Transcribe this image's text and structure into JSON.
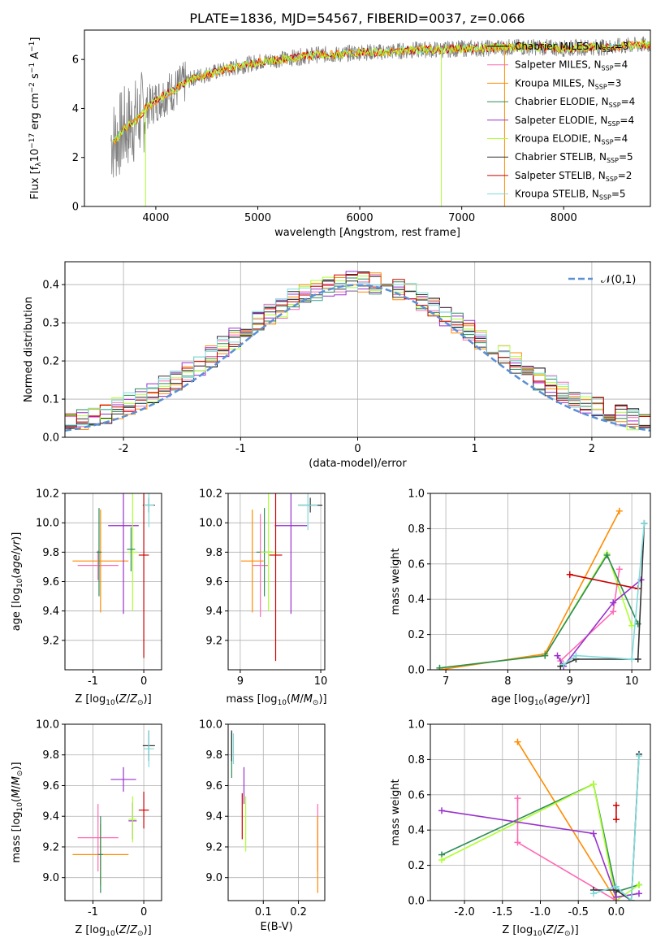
{
  "title": "PLATE=1836, MJD=54567, FIBERID=0037, z=0.066",
  "colors": [
    "#000000",
    "#ff69b4",
    "#ff8c00",
    "#2e8b57",
    "#9932cc",
    "#adff2f",
    "#333333",
    "#cc0000",
    "#7fdbdb"
  ],
  "series_names": [
    "Chabrier MILES, N$_{SSP}$=3",
    "Salpeter MILES, N$_{SSP}$=4",
    "Kroupa MILES, N$_{SSP}$=3",
    "Chabrier ELODIE, N$_{SSP}$=4",
    "Salpeter ELODIE, N$_{SSP}$=4",
    "Kroupa ELODIE, N$_{SSP}$=4",
    "Chabrier STELIB, N$_{SSP}$=5",
    "Salpeter STELIB, N$_{SSP}$=2",
    "Kroupa STELIB, N$_{SSP}$=5"
  ],
  "chart_data": [
    {
      "type": "line",
      "panel": "spectrum",
      "xlabel": "wavelength [Angstrom, rest frame]",
      "ylabel_parts": [
        "Flux [f",
        "λ",
        "10",
        "−17",
        " erg cm",
        "−2",
        " s",
        "−1",
        " A",
        "−1",
        "]"
      ],
      "xlim": [
        3300,
        8850
      ],
      "ylim": [
        0,
        7.2
      ],
      "xticks": [
        4000,
        5000,
        6000,
        7000,
        8000
      ],
      "yticks": [
        0,
        2,
        4,
        6
      ],
      "data_envelope": {
        "x": [
          3600,
          3700,
          3800,
          3900,
          4000,
          4100,
          4200,
          4300,
          4400,
          4600,
          4800,
          5000,
          5200,
          5400,
          5600,
          5800,
          6000,
          6200,
          6400,
          6600,
          6800,
          7000,
          7200,
          7400,
          7600,
          7800,
          8000,
          8200,
          8400,
          8600,
          8800
        ],
        "y": [
          2.7,
          3.2,
          3.5,
          4.0,
          4.3,
          4.6,
          4.8,
          5.1,
          5.3,
          5.5,
          5.7,
          5.9,
          6.0,
          6.1,
          6.2,
          6.2,
          6.3,
          6.3,
          6.35,
          6.4,
          6.4,
          6.45,
          6.45,
          6.5,
          6.5,
          6.5,
          6.45,
          6.5,
          6.5,
          6.55,
          6.6
        ]
      },
      "legend_position": "upper right"
    },
    {
      "type": "step",
      "panel": "residuals",
      "xlabel": "(data-model)/error",
      "ylabel": "Normed distribution",
      "xlim": [
        -2.5,
        2.5
      ],
      "ylim": [
        0,
        0.46
      ],
      "xticks": [
        -2,
        -1,
        0,
        1,
        2
      ],
      "yticks": [
        0.0,
        0.1,
        0.2,
        0.3,
        0.4
      ],
      "bin_width": 0.1,
      "reference_curve": "𝒩(0,1)",
      "legend_position": "upper right",
      "grid": true
    },
    {
      "type": "errorbar",
      "panel": "age-vs-Z",
      "xlabel": "Z [log10(Z/Z⊙)]",
      "ylabel": "age  [log10(age/yr)]",
      "xlim": [
        -1.55,
        0.35
      ],
      "ylim": [
        9.0,
        10.2
      ],
      "xticks": [
        -1,
        0
      ],
      "yticks": [
        9.2,
        9.4,
        9.6,
        9.8,
        10.0,
        10.2
      ],
      "points": [
        {
          "series": 1,
          "x": -0.9,
          "xerr": 0.4,
          "y": 9.71,
          "yerr": 0.1
        },
        {
          "series": 2,
          "x": -0.85,
          "xerr": 0.55,
          "y": 9.74,
          "yerr": 0.35
        },
        {
          "series": 3,
          "x": -0.88,
          "xerr": 0.05,
          "y": 9.8,
          "yerr": 0.3
        },
        {
          "series": 4,
          "x": -0.4,
          "xerr": 0.3,
          "y": 9.98,
          "yerr": 0.6
        },
        {
          "series": 5,
          "x": -0.22,
          "xerr": 0.1,
          "y": 9.8,
          "yerr": 0.4
        },
        {
          "series": 6,
          "x": 0.1,
          "xerr": 0.12,
          "y": 10.12,
          "yerr": 0.05
        },
        {
          "series": 7,
          "x": 0.0,
          "xerr": 0.1,
          "y": 9.78,
          "yerr": 0.7
        },
        {
          "series": 8,
          "x": 0.1,
          "xerr": 0.1,
          "y": 10.12,
          "yerr": 0.15
        },
        {
          "series": 3,
          "x": -0.25,
          "xerr": 0.08,
          "y": 9.82,
          "yerr": 0.15
        }
      ]
    },
    {
      "type": "errorbar",
      "panel": "age-vs-mass",
      "xlabel": "mass [log10(M/M⊙)]",
      "xlim": [
        8.85,
        10.05
      ],
      "ylim": [
        9.0,
        10.2
      ],
      "xticks": [
        9,
        10
      ],
      "yticks": [
        9.2,
        9.4,
        9.6,
        9.8,
        10.0,
        10.2
      ],
      "points": [
        {
          "series": 1,
          "x": 9.25,
          "xerr": 0.1,
          "y": 9.71,
          "yerr": 0.35
        },
        {
          "series": 2,
          "x": 9.15,
          "xerr": 0.14,
          "y": 9.74,
          "yerr": 0.35
        },
        {
          "series": 3,
          "x": 9.3,
          "xerr": 0.1,
          "y": 9.8,
          "yerr": 0.3
        },
        {
          "series": 4,
          "x": 9.63,
          "xerr": 0.2,
          "y": 9.98,
          "yerr": 0.6
        },
        {
          "series": 5,
          "x": 9.35,
          "xerr": 0.1,
          "y": 9.8,
          "yerr": 0.4
        },
        {
          "series": 6,
          "x": 9.87,
          "xerr": 0.15,
          "y": 10.12,
          "yerr": 0.05
        },
        {
          "series": 7,
          "x": 9.44,
          "xerr": 0.08,
          "y": 9.78,
          "yerr": 0.72
        },
        {
          "series": 8,
          "x": 9.84,
          "xerr": 0.12,
          "y": 10.12,
          "yerr": 0.17
        }
      ]
    },
    {
      "type": "line",
      "panel": "weight-vs-age",
      "xlabel": "age  [log10(age/yr)]",
      "ylabel": "mass weight",
      "xlim": [
        6.75,
        10.3
      ],
      "ylim": [
        0,
        1.0
      ],
      "xticks": [
        7,
        8,
        9,
        10
      ],
      "yticks": [
        0.0,
        0.2,
        0.4,
        0.6,
        0.8,
        1.0
      ],
      "series": [
        {
          "series": 2,
          "x": [
            6.9,
            8.6,
            9.8
          ],
          "y": [
            0.0,
            0.09,
            0.9
          ]
        },
        {
          "series": 1,
          "x": [
            8.85,
            9.7,
            9.8
          ],
          "y": [
            0.05,
            0.33,
            0.57
          ]
        },
        {
          "series": 5,
          "x": [
            6.9,
            8.6,
            9.6,
            10.0
          ],
          "y": [
            0.01,
            0.08,
            0.66,
            0.25
          ]
        },
        {
          "series": 3,
          "x": [
            6.9,
            8.6,
            9.6,
            10.1
          ],
          "y": [
            0.01,
            0.08,
            0.65,
            0.26
          ]
        },
        {
          "series": 4,
          "x": [
            8.8,
            8.9,
            9.7,
            10.15
          ],
          "y": [
            0.08,
            0.02,
            0.38,
            0.51
          ]
        },
        {
          "series": 7,
          "x": [
            9.0,
            10.1
          ],
          "y": [
            0.54,
            0.46
          ]
        },
        {
          "series": 6,
          "x": [
            8.85,
            9.1,
            10.1,
            10.2
          ],
          "y": [
            0.02,
            0.06,
            0.06,
            0.83
          ]
        },
        {
          "series": 8,
          "x": [
            8.9,
            9.1,
            10.0,
            10.2
          ],
          "y": [
            0.03,
            0.08,
            0.06,
            0.83
          ]
        }
      ]
    },
    {
      "type": "errorbar",
      "panel": "mass-vs-Z",
      "xlabel": "Z [log10(Z/Z⊙)]",
      "ylabel": "mass [log10(M/M⊙)]",
      "xlim": [
        -1.55,
        0.35
      ],
      "ylim": [
        8.85,
        10.0
      ],
      "xticks": [
        -1,
        0
      ],
      "yticks": [
        9.0,
        9.2,
        9.4,
        9.6,
        9.8,
        10.0
      ],
      "points": [
        {
          "series": 1,
          "x": -0.9,
          "xerr": 0.4,
          "y": 9.26,
          "yerr": 0.22
        },
        {
          "series": 2,
          "x": -0.85,
          "xerr": 0.55,
          "y": 9.15,
          "yerr": 0.2
        },
        {
          "series": 3,
          "x": -0.85,
          "xerr": 0.05,
          "y": 9.15,
          "yerr": 0.25
        },
        {
          "series": 4,
          "x": -0.4,
          "xerr": 0.25,
          "y": 9.64,
          "yerr": 0.08
        },
        {
          "series": 4,
          "x": -0.22,
          "xerr": 0.08,
          "y": 9.37,
          "yerr": 0.12
        },
        {
          "series": 5,
          "x": -0.22,
          "xerr": 0.08,
          "y": 9.38,
          "yerr": 0.15
        },
        {
          "series": 6,
          "x": 0.1,
          "xerr": 0.12,
          "y": 9.86,
          "yerr": 0.1
        },
        {
          "series": 7,
          "x": 0.0,
          "xerr": 0.1,
          "y": 9.44,
          "yerr": 0.12
        },
        {
          "series": 8,
          "x": 0.1,
          "xerr": 0.1,
          "y": 9.84,
          "yerr": 0.12
        }
      ]
    },
    {
      "type": "errorbar",
      "panel": "mass-vs-EBV",
      "xlabel": "E(B-V)",
      "xlim": [
        0.0,
        0.275
      ],
      "ylim": [
        8.85,
        10.0
      ],
      "xticks": [
        0.1,
        0.2
      ],
      "yticks": [
        9.0,
        9.2,
        9.4,
        9.6,
        9.8,
        10.0
      ],
      "points": [
        {
          "series": 1,
          "x": 0.255,
          "y": 9.26,
          "yerr": 0.22
        },
        {
          "series": 2,
          "x": 0.255,
          "y": 9.15,
          "yerr": 0.25
        },
        {
          "series": 3,
          "x": 0.01,
          "y": 9.8,
          "yerr": 0.15
        },
        {
          "series": 4,
          "x": 0.045,
          "y": 9.6,
          "yerr": 0.12
        },
        {
          "series": 5,
          "x": 0.05,
          "y": 9.35,
          "yerr": 0.18
        },
        {
          "series": 6,
          "x": 0.01,
          "y": 9.86,
          "yerr": 0.1
        },
        {
          "series": 7,
          "x": 0.04,
          "y": 9.4,
          "yerr": 0.15
        },
        {
          "series": 8,
          "x": 0.015,
          "y": 9.84,
          "yerr": 0.1
        }
      ]
    },
    {
      "type": "line",
      "panel": "weight-vs-Z",
      "xlabel": "Z [log10(Z/Z⊙)]",
      "ylabel": "mass weight",
      "xlim": [
        -2.45,
        0.45
      ],
      "ylim": [
        0,
        1.0
      ],
      "xticks": [
        -2.0,
        -1.5,
        -1.0,
        -0.5,
        0.0
      ],
      "yticks": [
        0.0,
        0.2,
        0.4,
        0.6,
        0.8,
        1.0
      ],
      "series": [
        {
          "series": 2,
          "x": [
            -1.3,
            0.0
          ],
          "y": [
            0.9,
            0.0
          ]
        },
        {
          "series": 1,
          "x": [
            -1.3,
            -1.3,
            0.0
          ],
          "y": [
            0.58,
            0.33,
            0.0
          ]
        },
        {
          "series": 3,
          "x": [
            -2.3,
            -0.3,
            0.0,
            0.3
          ],
          "y": [
            0.26,
            0.66,
            0.05,
            0.09
          ]
        },
        {
          "series": 5,
          "x": [
            -2.3,
            -0.3,
            0.0,
            0.3
          ],
          "y": [
            0.23,
            0.66,
            0.0,
            0.09
          ]
        },
        {
          "series": 4,
          "x": [
            -2.3,
            -0.3,
            0.0,
            0.3
          ],
          "y": [
            0.51,
            0.38,
            0.02,
            0.04
          ]
        },
        {
          "series": 7,
          "x": [
            0.0,
            0.0
          ],
          "y": [
            0.46,
            0.54
          ]
        },
        {
          "series": 6,
          "x": [
            -0.3,
            0.0,
            0.2,
            0.3
          ],
          "y": [
            0.06,
            0.06,
            0.0,
            0.83
          ]
        },
        {
          "series": 8,
          "x": [
            -0.3,
            0.0,
            0.2,
            0.3
          ],
          "y": [
            0.04,
            0.08,
            0.0,
            0.82
          ]
        }
      ]
    }
  ]
}
